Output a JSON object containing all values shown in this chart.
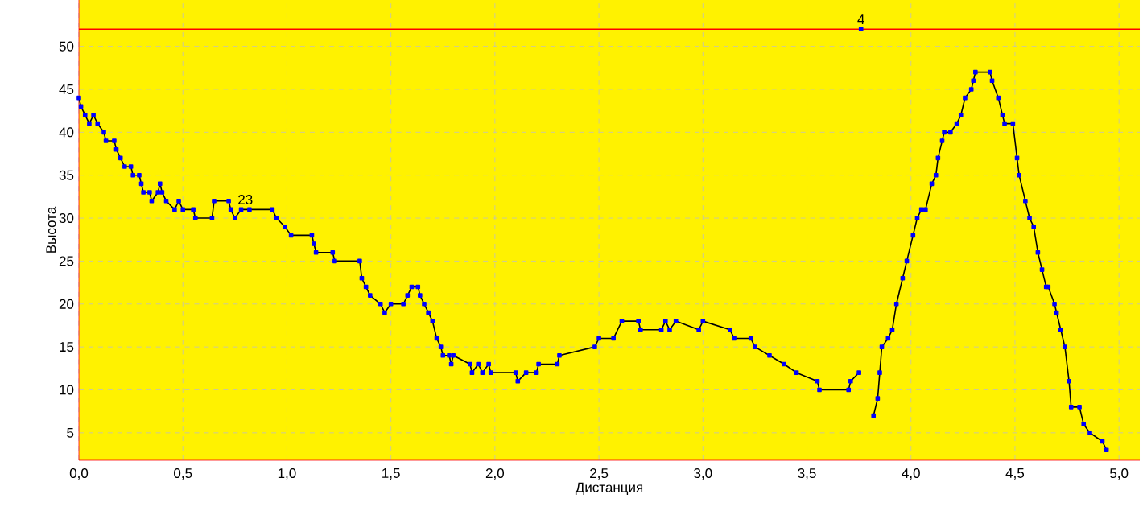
{
  "chart_data": {
    "type": "line",
    "xlabel": "Дистанция",
    "ylabel": "Высота",
    "xlim": [
      0,
      5.1
    ],
    "ylim": [
      1.8,
      55.4
    ],
    "xticks": [
      {
        "value": 0,
        "label": "0,0"
      },
      {
        "value": 0.5,
        "label": "0,5"
      },
      {
        "value": 1,
        "label": "1,0"
      },
      {
        "value": 1.5,
        "label": "1,5"
      },
      {
        "value": 2,
        "label": "2,0"
      },
      {
        "value": 2.5,
        "label": "2,5"
      },
      {
        "value": 3,
        "label": "3,0"
      },
      {
        "value": 3.5,
        "label": "3,5"
      },
      {
        "value": 4,
        "label": "4,0"
      },
      {
        "value": 4.5,
        "label": "4,5"
      },
      {
        "value": 5,
        "label": "5,0"
      }
    ],
    "yticks": [
      5,
      10,
      15,
      20,
      25,
      30,
      35,
      40,
      45,
      50
    ],
    "grid": true,
    "marker": "square",
    "series": [
      {
        "color": "#0000ff",
        "x": [
          0,
          0.01,
          0.03,
          0.05,
          0.07,
          0.09,
          0.12,
          0.13,
          0.17,
          0.18,
          0.2,
          0.22,
          0.25,
          0.26,
          0.29,
          0.3,
          0.31,
          0.34,
          0.35,
          0.38,
          0.39,
          0.4,
          0.42,
          0.46,
          0.48,
          0.5,
          0.55,
          0.56,
          0.64,
          0.65,
          0.72,
          0.73,
          0.75,
          0.78,
          0.82,
          0.93,
          0.95,
          0.99,
          1.02,
          1.12,
          1.13,
          1.14,
          1.22,
          1.23,
          1.35,
          1.36,
          1.38,
          1.4,
          1.45,
          1.47,
          1.5,
          1.56,
          1.58,
          1.6,
          1.63,
          1.64,
          1.66,
          1.68,
          1.7,
          1.72,
          1.74,
          1.75,
          1.78,
          1.79,
          1.8,
          1.88,
          1.89,
          1.92,
          1.94,
          1.97,
          1.98,
          2.1,
          2.11,
          2.15,
          2.2,
          2.21,
          2.3,
          2.31,
          2.48,
          2.5,
          2.57,
          2.61,
          2.69,
          2.7,
          2.8,
          2.82,
          2.84,
          2.87,
          2.98,
          3.0,
          3.13,
          3.15,
          3.23,
          3.25,
          3.32,
          3.39,
          3.45,
          3.55,
          3.56,
          3.7,
          3.71,
          3.75,
          3.76,
          3.82,
          3.84,
          3.85,
          3.86,
          3.89,
          3.91,
          3.93,
          3.96,
          3.98,
          4.01,
          4.03,
          4.05,
          4.07,
          4.1,
          4.12,
          4.13,
          4.15,
          4.16,
          4.19,
          4.22,
          4.24,
          4.26,
          4.29,
          4.3,
          4.31,
          4.38,
          4.39,
          4.42,
          4.44,
          4.45,
          4.49,
          4.51,
          4.52,
          4.55,
          4.57,
          4.59,
          4.61,
          4.63,
          4.65,
          4.66,
          4.69,
          4.7,
          4.72,
          4.74,
          4.76,
          4.77,
          4.81,
          4.83,
          4.86,
          4.92,
          4.94
        ],
        "values": [
          44,
          43,
          42,
          41,
          42,
          41,
          40,
          39,
          39,
          38,
          37,
          36,
          36,
          35,
          35,
          34,
          33,
          33,
          32,
          33,
          34,
          33,
          32,
          31,
          32,
          31,
          31,
          30,
          30,
          32,
          32,
          31,
          30,
          31,
          31,
          31,
          30,
          29,
          28,
          28,
          27,
          26,
          26,
          25,
          25,
          23,
          22,
          21,
          20,
          19,
          20,
          20,
          21,
          22,
          22,
          21,
          20,
          19,
          18,
          16,
          15,
          14,
          14,
          13,
          14,
          13,
          12,
          13,
          12,
          13,
          12,
          12,
          11,
          12,
          12,
          13,
          13,
          14,
          15,
          16,
          16,
          18,
          18,
          17,
          17,
          18,
          17,
          18,
          17,
          18,
          17,
          16,
          16,
          15,
          14,
          13,
          12,
          11,
          10,
          10,
          11,
          12,
          null,
          7,
          9,
          12,
          15,
          16,
          17,
          20,
          23,
          25,
          28,
          30,
          31,
          31,
          34,
          35,
          37,
          39,
          40,
          40,
          41,
          42,
          44,
          45,
          46,
          47,
          47,
          46,
          44,
          42,
          41,
          41,
          37,
          35,
          32,
          30,
          29,
          26,
          24,
          22,
          22,
          20,
          19,
          17,
          15,
          11,
          8,
          8,
          6,
          5,
          4,
          3
        ]
      },
      {
        "type": "scatter",
        "color": "#0000ff",
        "x": [
          3.76
        ],
        "values": [
          52
        ]
      }
    ],
    "ref_lines": [
      {
        "axis": "y",
        "value": 52,
        "color": "#ff0000"
      }
    ],
    "annotations": [
      {
        "text": "23",
        "x": 0.8,
        "y": 31
      },
      {
        "text": "4",
        "x": 3.76,
        "y": 52
      }
    ]
  }
}
